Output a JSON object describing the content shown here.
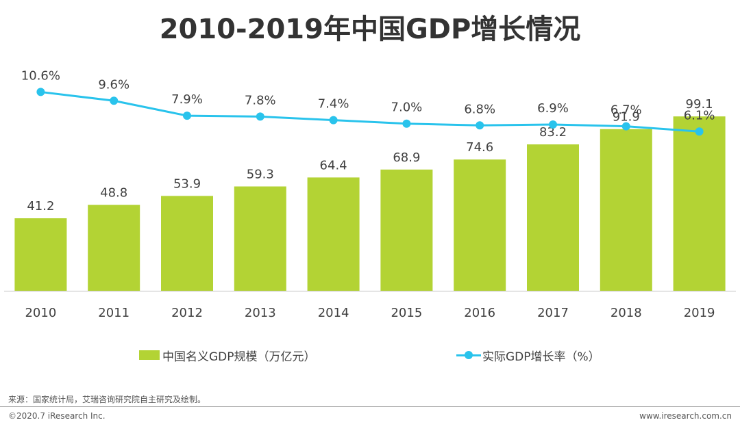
{
  "title": "2010-2019年中国GDP增长情况",
  "chart_data": {
    "type": "bar",
    "categories": [
      "2010",
      "2011",
      "2012",
      "2013",
      "2014",
      "2015",
      "2016",
      "2017",
      "2018",
      "2019"
    ],
    "series": [
      {
        "name": "中国名义GDP规模（万亿元）",
        "type": "bar",
        "values": [
          41.2,
          48.8,
          53.9,
          59.3,
          64.4,
          68.9,
          74.6,
          83.2,
          91.9,
          99.1
        ],
        "labels": [
          "41.2",
          "48.8",
          "53.9",
          "59.3",
          "64.4",
          "68.9",
          "74.6",
          "83.2",
          "91.9",
          "99.1"
        ],
        "color": "#b3d334"
      },
      {
        "name": "实际GDP增长率（%）",
        "type": "line",
        "values": [
          10.6,
          9.6,
          7.9,
          7.8,
          7.4,
          7.0,
          6.8,
          6.9,
          6.7,
          6.1
        ],
        "labels": [
          "10.6%",
          "9.6%",
          "7.9%",
          "7.8%",
          "7.4%",
          "7.0%",
          "6.8%",
          "6.9%",
          "6.7%",
          "6.1%"
        ],
        "color": "#29c3ec"
      }
    ],
    "ylim_bar": [
      0,
      140
    ],
    "ylim_line": [
      -12,
      16
    ],
    "legend_position": "bottom",
    "grid": false
  },
  "legend": {
    "bar_label": "中国名义GDP规模（万亿元）",
    "line_label": "实际GDP增长率（%）"
  },
  "source": "来源：国家统计局，艾瑞咨询研究院自主研究及绘制。",
  "footer": {
    "copyright": "©2020.7 iResearch Inc.",
    "website": "www.iresearch.com.cn"
  }
}
